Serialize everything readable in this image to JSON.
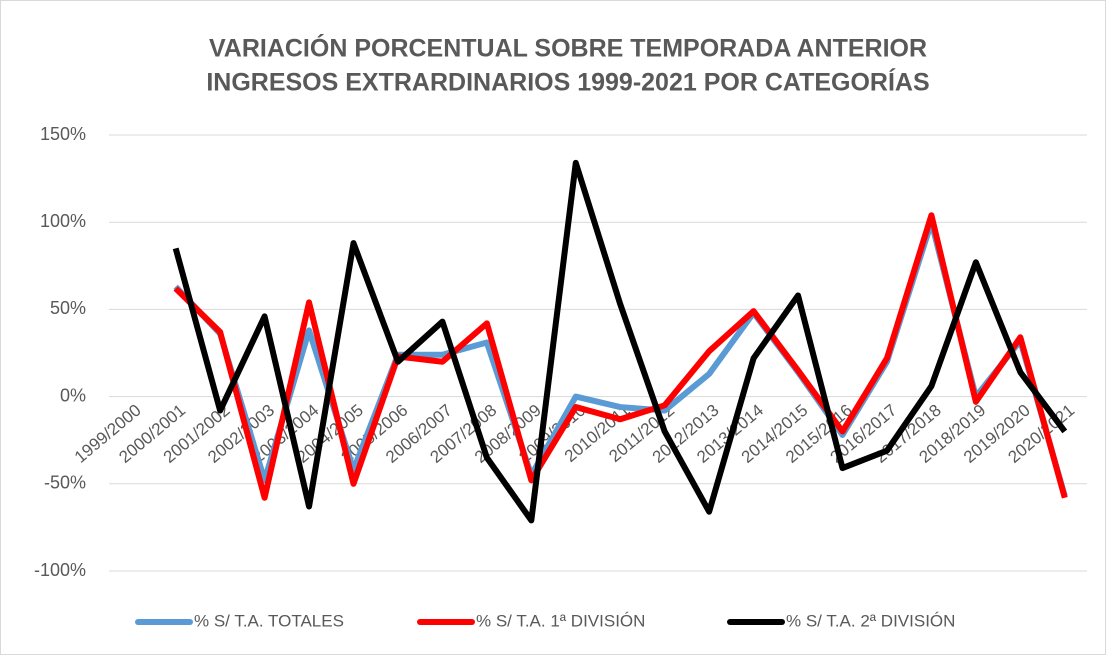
{
  "chart_data": {
    "type": "line",
    "title": [
      "VARIACIÓN PORCENTUAL SOBRE TEMPORADA ANTERIOR",
      "INGRESOS EXTRARDINARIOS 1999-2021 POR CATEGORÍAS"
    ],
    "categories": [
      "1999/2000",
      "2000/2001",
      "2001/2002",
      "2002/2003",
      "2003/2004",
      "2004/2005",
      "2005/2006",
      "2006/2007",
      "2007/2008",
      "2008/2009",
      "2009/2010",
      "2010/2011",
      "2011/2012",
      "2012/2013",
      "2013/2014",
      "2014/2015",
      "2015/2016",
      "2016/2017",
      "2017/2018",
      "2018/2019",
      "2019/2020",
      "2020/2021"
    ],
    "series": [
      {
        "name": "% S/ T.A. TOTALES",
        "color": "#5b9bd5",
        "values": [
          null,
          63,
          36,
          -48,
          38,
          -42,
          24,
          24,
          31,
          -45,
          0,
          -6,
          -8,
          13,
          48,
          14,
          -22,
          20,
          100,
          0,
          32,
          -57
        ]
      },
      {
        "name": "% S/ T.A. 1ª DIVISIÓN",
        "color": "#ff0000",
        "values": [
          null,
          62,
          37,
          -58,
          54,
          -50,
          23,
          20,
          42,
          -48,
          -6,
          -13,
          -5,
          26,
          49,
          15,
          -20,
          22,
          104,
          -3,
          34,
          -58
        ]
      },
      {
        "name": "% S/ T.A. 2ª DIVISIÓN",
        "color": "#000000",
        "values": [
          null,
          85,
          -8,
          46,
          -63,
          88,
          20,
          43,
          -35,
          -71,
          134,
          53,
          -20,
          -66,
          22,
          58,
          -41,
          -31,
          6,
          77,
          14,
          -20
        ]
      }
    ],
    "ylim": [
      -100,
      150
    ],
    "yticks": [
      {
        "value": -100,
        "label": "-100%"
      },
      {
        "value": -50,
        "label": "-50%"
      },
      {
        "value": 0,
        "label": "0%"
      },
      {
        "value": 50,
        "label": "50%"
      },
      {
        "value": 100,
        "label": "100%"
      },
      {
        "value": 150,
        "label": "150%"
      }
    ],
    "grid": true,
    "legend": "bottom"
  }
}
